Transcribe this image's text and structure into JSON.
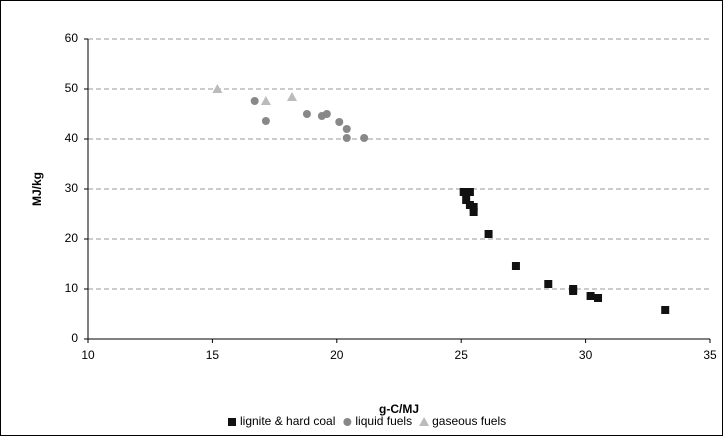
{
  "chart_data": {
    "type": "scatter",
    "x_label": "g-C/MJ",
    "y_label": "MJ/kg",
    "xlim": [
      10,
      35
    ],
    "xticks": [
      10,
      15,
      20,
      25,
      30,
      35
    ],
    "ylim": [
      0,
      60
    ],
    "yticks": [
      0,
      10,
      20,
      30,
      40,
      50,
      60
    ],
    "grid": true,
    "legend": "bottom",
    "series": [
      {
        "name": "lignite & hard coal",
        "color": "#111111",
        "marker": "square",
        "x": [
          25.1,
          25.35,
          25.2,
          25.35,
          25.5,
          25.5,
          26.1,
          27.2,
          28.5,
          29.5,
          29.5,
          30.2,
          30.5,
          33.2
        ],
        "values": [
          29.4,
          29.4,
          27.8,
          26.8,
          26.4,
          25.4,
          21,
          14.6,
          11,
          10,
          9.6,
          8.6,
          8.2,
          5.8
        ]
      },
      {
        "name": "liquid fuels",
        "color": "#888888",
        "marker": "circle",
        "x": [
          16.7,
          17.15,
          18.8,
          19.4,
          19.6,
          20.1,
          20.4,
          20.4,
          21.1
        ],
        "values": [
          47.6,
          43.6,
          45,
          44.6,
          45,
          43.4,
          42,
          40.2,
          40.2
        ]
      },
      {
        "name": "gaseous fuels",
        "color": "#bbbbbb",
        "marker": "triangle",
        "x": [
          15.2,
          17.15,
          18.2
        ],
        "values": [
          50,
          47.6,
          48.4
        ]
      }
    ]
  }
}
